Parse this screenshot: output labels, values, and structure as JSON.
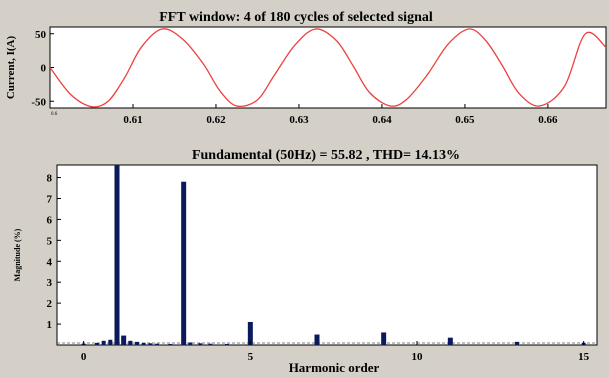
{
  "chart_data": [
    {
      "type": "line",
      "title": "FFT window: 4 of 180 cycles of selected signal",
      "ylabel": "Current, I(A)",
      "xlabel": "",
      "xlim": [
        0.6,
        0.667
      ],
      "ylim": [
        -60,
        60
      ],
      "x_ticks": [
        {
          "value": 0.6,
          "label": "0.6"
        },
        {
          "value": 0.61,
          "label": "0.61"
        },
        {
          "value": 0.62,
          "label": "0.62"
        },
        {
          "value": 0.63,
          "label": "0.63"
        },
        {
          "value": 0.64,
          "label": "0.64"
        },
        {
          "value": 0.65,
          "label": "0.65"
        },
        {
          "value": 0.66,
          "label": "0.66"
        }
      ],
      "y_ticks": [
        {
          "value": 50,
          "label": "50"
        },
        {
          "value": 0,
          "label": "0"
        },
        {
          "value": -50,
          "label": "-50"
        }
      ],
      "color": "#ee4040",
      "series": [
        {
          "x": [
            0.6,
            0.6025,
            0.605,
            0.607,
            0.609,
            0.611,
            0.6135,
            0.616,
            0.6185,
            0.6205,
            0.6225,
            0.625,
            0.627,
            0.6295,
            0.632,
            0.6345,
            0.6365,
            0.6385,
            0.641,
            0.643,
            0.6455,
            0.648,
            0.6505,
            0.6525,
            0.6545,
            0.6565,
            0.659,
            0.662,
            0.6645,
            0.667
          ],
          "y": [
            0,
            -40,
            -58,
            -50,
            -15,
            30,
            57,
            42,
            5,
            -35,
            -57,
            -48,
            -12,
            33,
            57,
            40,
            3,
            -37,
            -57,
            -47,
            -10,
            35,
            57,
            40,
            3,
            -38,
            -57,
            -28,
            50,
            30
          ]
        }
      ]
    },
    {
      "type": "bar",
      "title": "Fundamental (50Hz) = 55.82 , THD= 14.13%",
      "xlabel": "Harmonic order",
      "ylabel": "Magnitude (%)",
      "xlim": [
        -0.8,
        15.4
      ],
      "ylim": [
        0,
        8.6
      ],
      "x_ticks": [
        {
          "value": 0,
          "label": "0"
        },
        {
          "value": 5,
          "label": "5"
        },
        {
          "value": 10,
          "label": "10"
        },
        {
          "value": 15,
          "label": "15"
        }
      ],
      "y_ticks": [
        {
          "value": 1,
          "label": "1"
        },
        {
          "value": 2,
          "label": "2"
        },
        {
          "value": 3,
          "label": "3"
        },
        {
          "value": 4,
          "label": "4"
        },
        {
          "value": 5,
          "label": "5"
        },
        {
          "value": 6,
          "label": "6"
        },
        {
          "value": 7,
          "label": "7"
        },
        {
          "value": 8,
          "label": "8"
        }
      ],
      "color": "#0a1a5a",
      "bars": [
        {
          "x": 0,
          "value": 0.06
        },
        {
          "x": 0.4,
          "value": 0.1
        },
        {
          "x": 0.6,
          "value": 0.2
        },
        {
          "x": 0.8,
          "value": 0.25
        },
        {
          "x": 1,
          "value": 8.6
        },
        {
          "x": 1.2,
          "value": 0.45
        },
        {
          "x": 1.4,
          "value": 0.2
        },
        {
          "x": 1.6,
          "value": 0.15
        },
        {
          "x": 1.8,
          "value": 0.1
        },
        {
          "x": 2,
          "value": 0.08
        },
        {
          "x": 2.2,
          "value": 0.06
        },
        {
          "x": 2.6,
          "value": 0.05
        },
        {
          "x": 3,
          "value": 7.8
        },
        {
          "x": 3.2,
          "value": 0.12
        },
        {
          "x": 3.5,
          "value": 0.08
        },
        {
          "x": 3.8,
          "value": 0.06
        },
        {
          "x": 4.3,
          "value": 0.05
        },
        {
          "x": 5,
          "value": 1.1
        },
        {
          "x": 7,
          "value": 0.5
        },
        {
          "x": 9,
          "value": 0.6
        },
        {
          "x": 11,
          "value": 0.35
        },
        {
          "x": 13,
          "value": 0.15
        },
        {
          "x": 15,
          "value": 0.1
        }
      ]
    }
  ]
}
